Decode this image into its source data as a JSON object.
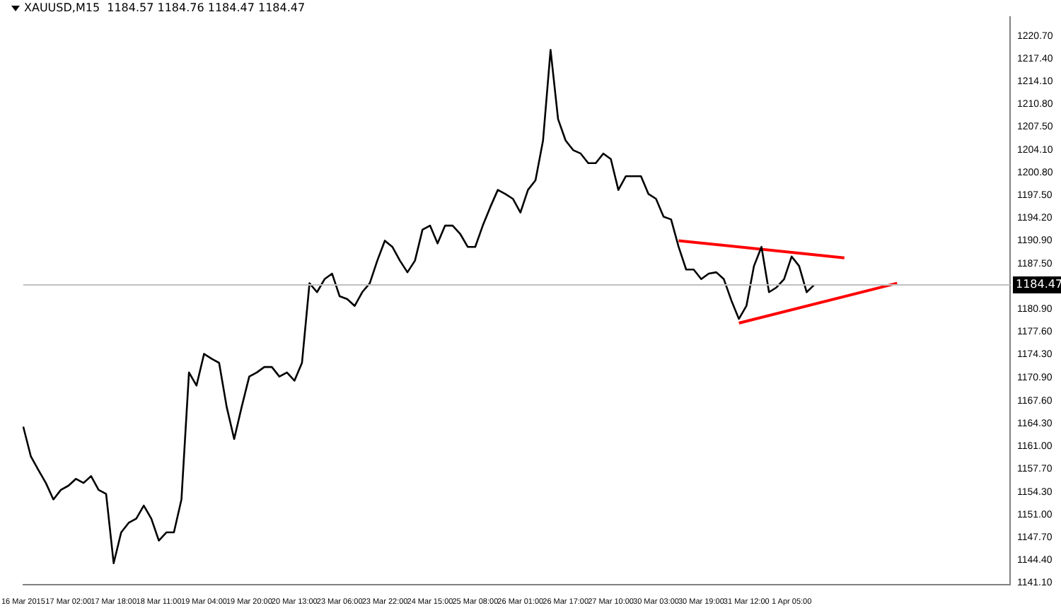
{
  "chart_data": {
    "type": "line",
    "title": "XAUUSD,M15  1184.57 1184.76 1184.47 1184.47",
    "categories": [
      "16 Mar 2015",
      null,
      null,
      null,
      null,
      null,
      "17 Mar 02:00",
      null,
      null,
      null,
      null,
      null,
      "17 Mar 18:00",
      null,
      null,
      null,
      null,
      null,
      "18 Mar 11:00",
      null,
      null,
      null,
      null,
      null,
      "19 Mar 04:00",
      null,
      null,
      null,
      null,
      null,
      "19 Mar 20:00",
      null,
      null,
      null,
      null,
      null,
      "20 Mar 13:00",
      null,
      null,
      null,
      null,
      null,
      "23 Mar 06:00",
      null,
      null,
      null,
      null,
      null,
      "23 Mar 22:00",
      null,
      null,
      null,
      null,
      null,
      "24 Mar 15:00",
      null,
      null,
      null,
      null,
      null,
      "25 Mar 08:00",
      null,
      null,
      null,
      null,
      null,
      "26 Mar 01:00",
      null,
      null,
      null,
      null,
      null,
      "26 Mar 17:00",
      null,
      null,
      null,
      null,
      null,
      "27 Mar 10:00",
      null,
      null,
      null,
      null,
      null,
      "30 Mar 03:00",
      null,
      null,
      null,
      null,
      null,
      "30 Mar 19:00",
      null,
      null,
      null,
      null,
      null,
      "31 Mar 12:00",
      null,
      null,
      null,
      null,
      null,
      "1 Apr 05:00",
      null,
      null,
      null,
      null,
      null,
      null,
      null,
      null,
      null,
      null,
      null,
      null,
      null,
      null,
      null,
      null,
      null,
      null,
      null,
      null,
      null,
      null,
      null,
      null,
      null,
      null,
      null,
      null,
      null
    ],
    "series": [
      {
        "color": "#000000",
        "values": [
          1163.8,
          1159.5,
          1157.5,
          1155.6,
          1153.2,
          1154.6,
          1155.2,
          1156.2,
          1155.6,
          1156.6,
          1154.6,
          1154.0,
          1143.9,
          1148.4,
          1149.8,
          1150.4,
          1152.3,
          1150.4,
          1147.2,
          1148.4,
          1148.4,
          1153.2,
          1171.7,
          1169.8,
          1174.4,
          1173.7,
          1173.1,
          1166.7,
          1162.0,
          1166.7,
          1171.1,
          1171.7,
          1172.5,
          1172.5,
          1171.1,
          1171.7,
          1170.5,
          1173.1,
          1184.7,
          1183.4,
          1185.3,
          1186.1,
          1182.8,
          1182.4,
          1181.4,
          1183.4,
          1184.7,
          1188.0,
          1190.9,
          1190.0,
          1188.0,
          1186.3,
          1188.0,
          1192.5,
          1193.1,
          1190.5,
          1193.1,
          1193.1,
          1191.9,
          1190.0,
          1190.0,
          1193.1,
          1195.8,
          1198.3,
          1197.7,
          1197.0,
          1195.0,
          1198.3,
          1199.7,
          1205.5,
          1218.7,
          1208.6,
          1205.5,
          1204.1,
          1203.6,
          1202.2,
          1202.2,
          1203.6,
          1202.8,
          1198.3,
          1200.3,
          1200.3,
          1200.3,
          1197.7,
          1197.0,
          1194.4,
          1194.0,
          1190.0,
          1186.7,
          1186.7,
          1185.3,
          1186.1,
          1186.3,
          1185.3,
          1182.2,
          1179.5,
          1181.4,
          1187.2,
          1190.0,
          1183.4,
          1184.1,
          1185.3,
          1188.6,
          1187.2,
          1183.4,
          1184.47,
          null,
          null,
          null,
          null,
          null,
          null,
          null,
          null,
          null,
          null,
          null,
          null,
          null,
          null,
          null,
          null,
          null,
          null,
          null,
          null,
          null,
          null,
          null,
          null,
          null,
          null
        ]
      },
      {
        "color": "#ff0000",
        "values": [
          null,
          null,
          null,
          null,
          null,
          null,
          null,
          null,
          null,
          null,
          null,
          null,
          null,
          null,
          null,
          null,
          null,
          null,
          null,
          null,
          null,
          null,
          null,
          null,
          null,
          null,
          null,
          null,
          null,
          null,
          null,
          null,
          null,
          null,
          null,
          null,
          null,
          null,
          null,
          null,
          null,
          null,
          null,
          null,
          null,
          null,
          null,
          null,
          null,
          null,
          null,
          null,
          null,
          null,
          null,
          null,
          null,
          null,
          null,
          null,
          null,
          null,
          null,
          null,
          null,
          null,
          null,
          null,
          null,
          null,
          null,
          null,
          null,
          null,
          null,
          null,
          null,
          null,
          null,
          null,
          null,
          null,
          null,
          null,
          null,
          null,
          null,
          1190.9,
          null,
          null,
          null,
          null,
          null,
          null,
          null,
          null,
          null,
          null,
          null,
          null,
          null,
          null,
          null,
          null,
          null,
          null,
          null,
          null,
          null,
          1188.4,
          null,
          null,
          null,
          null,
          null,
          null,
          null,
          null,
          null,
          null,
          null,
          null,
          null,
          null,
          null,
          null,
          null,
          null,
          null,
          null,
          null,
          null
        ]
      },
      {
        "color": "#ff0000",
        "values": [
          null,
          null,
          null,
          null,
          null,
          null,
          null,
          null,
          null,
          null,
          null,
          null,
          null,
          null,
          null,
          null,
          null,
          null,
          null,
          null,
          null,
          null,
          null,
          null,
          null,
          null,
          null,
          null,
          null,
          null,
          null,
          null,
          null,
          null,
          null,
          null,
          null,
          null,
          null,
          null,
          null,
          null,
          null,
          null,
          null,
          null,
          null,
          null,
          null,
          null,
          null,
          null,
          null,
          null,
          null,
          null,
          null,
          null,
          null,
          null,
          null,
          null,
          null,
          null,
          null,
          null,
          null,
          null,
          null,
          null,
          null,
          null,
          null,
          null,
          null,
          null,
          null,
          null,
          null,
          null,
          null,
          null,
          null,
          null,
          null,
          null,
          null,
          null,
          null,
          null,
          null,
          null,
          null,
          null,
          null,
          1178.9,
          null,
          null,
          null,
          null,
          null,
          null,
          null,
          null,
          null,
          null,
          null,
          null,
          null,
          null,
          null,
          null,
          null,
          null,
          null,
          null,
          1184.7,
          null,
          null,
          null,
          null,
          null,
          null,
          null,
          null,
          null,
          null,
          null,
          null,
          null,
          null,
          null
        ]
      }
    ],
    "ylim": [
      1140.8,
      1223.5
    ],
    "yticks": [
      {
        "value": 1141.1,
        "label": "1141.10"
      },
      {
        "value": 1144.4,
        "label": "1144.40"
      },
      {
        "value": 1147.7,
        "label": "1147.70"
      },
      {
        "value": 1151.0,
        "label": "1151.00"
      },
      {
        "value": 1154.3,
        "label": "1154.30"
      },
      {
        "value": 1157.7,
        "label": "1157.70"
      },
      {
        "value": 1161.0,
        "label": "1161.00"
      },
      {
        "value": 1164.3,
        "label": "1164.30"
      },
      {
        "value": 1167.6,
        "label": "1167.60"
      },
      {
        "value": 1170.9,
        "label": "1170.90"
      },
      {
        "value": 1174.3,
        "label": "1174.30"
      },
      {
        "value": 1177.6,
        "label": "1177.60"
      },
      {
        "value": 1180.9,
        "label": "1180.90"
      },
      {
        "value": 1187.5,
        "label": "1187.50"
      },
      {
        "value": 1190.9,
        "label": "1190.90"
      },
      {
        "value": 1194.2,
        "label": "1194.20"
      },
      {
        "value": 1197.5,
        "label": "1197.50"
      },
      {
        "value": 1200.8,
        "label": "1200.80"
      },
      {
        "value": 1204.1,
        "label": "1204.10"
      },
      {
        "value": 1207.5,
        "label": "1207.50"
      },
      {
        "value": 1210.8,
        "label": "1210.80"
      },
      {
        "value": 1214.1,
        "label": "1214.10"
      },
      {
        "value": 1217.4,
        "label": "1217.40"
      },
      {
        "value": 1220.7,
        "label": "1220.70"
      }
    ],
    "ref_lines": [
      {
        "axis": "y",
        "value": 1184.47,
        "label": "1184.47",
        "color": "#c0c0c0"
      }
    ],
    "grid": false,
    "legend": false,
    "marker": "none",
    "line_style": "solid"
  }
}
